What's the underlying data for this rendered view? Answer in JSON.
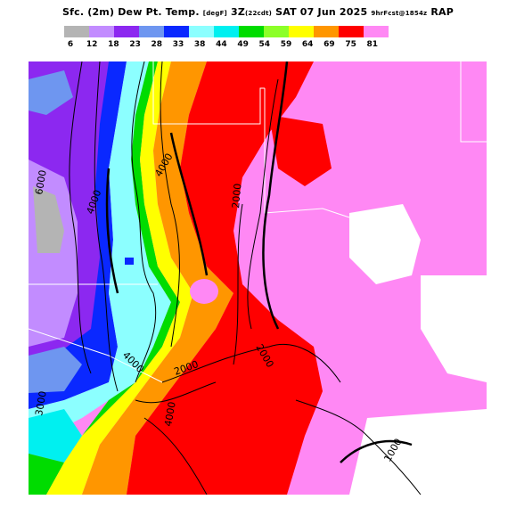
{
  "header": {
    "title_main": "Sfc. (2m) Dew Pt. Temp.",
    "title_units": "[degF]",
    "title_time": "3Z",
    "title_local": "(22cdt)",
    "title_date": "SAT 07 Jun 2025",
    "title_fcst": "9hrFcst@1854z",
    "title_model": "RAP"
  },
  "legend": {
    "colors": [
      "#b4b4b4",
      "#c28cff",
      "#8c28f0",
      "#6e96f0",
      "#0a28ff",
      "#8cffff",
      "#00f0f0",
      "#00dc00",
      "#8cff28",
      "#ffff00",
      "#ff9600",
      "#ff0000",
      "#ff88f4"
    ],
    "ticks": [
      "6",
      "12",
      "18",
      "23",
      "28",
      "33",
      "38",
      "44",
      "49",
      "54",
      "59",
      "64",
      "69",
      "75",
      "81"
    ]
  },
  "map": {
    "contour_labels": [
      "6000",
      "4000",
      "4000",
      "2000",
      "2000",
      "4000",
      "2000",
      "3000",
      "4000",
      "1000"
    ]
  }
}
